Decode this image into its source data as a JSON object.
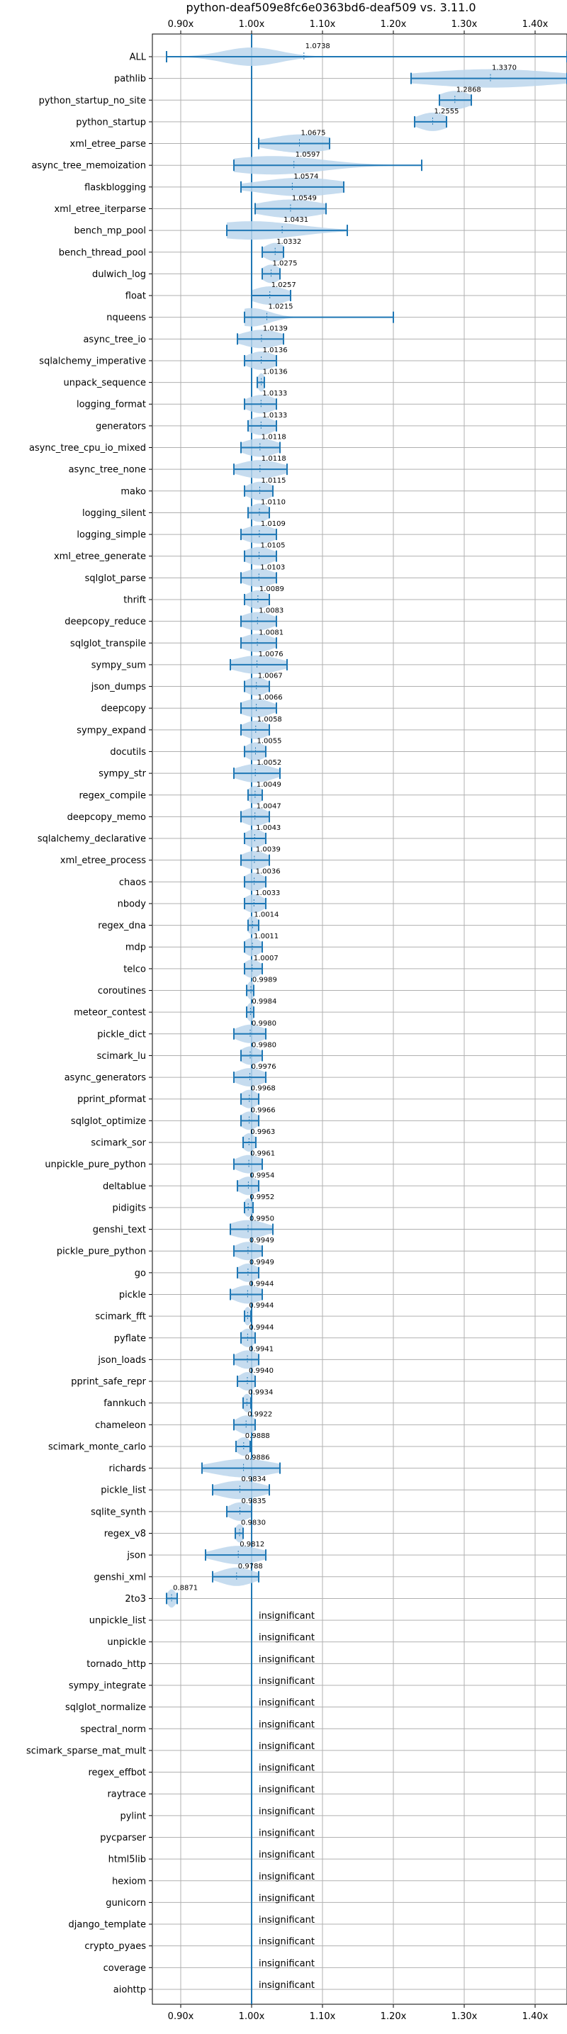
{
  "chart_data": {
    "type": "violin",
    "title": "python-deaf509e8fc6e0363bd6-deaf509 vs. 3.11.0",
    "xlabel": "",
    "ylabel": "",
    "xlim": [
      0.86,
      1.445
    ],
    "xticks": [
      0.9,
      1.0,
      1.1,
      1.2,
      1.3,
      1.4
    ],
    "xtick_labels": [
      "0.90x",
      "1.00x",
      "1.10x",
      "1.20x",
      "1.30x",
      "1.40x"
    ],
    "reference_line": 1.0,
    "grid": true,
    "colors": {
      "violin": "#bcd6ec",
      "whisker": "#1f77b4",
      "grid": "#b0b0b0"
    },
    "insignificant_label": "insignificant",
    "series": [
      {
        "name": "ALL",
        "label": "1.0738",
        "min": 0.88,
        "max": 1.445,
        "mean": 1.0738,
        "mode": 1.0,
        "spread": 0.04
      },
      {
        "name": "pathlib",
        "label": "1.3370",
        "min": 1.225,
        "max": 1.445,
        "mean": 1.337,
        "mode": 1.337,
        "spread": 0.1
      },
      {
        "name": "python_startup_no_site",
        "label": "1.2868",
        "min": 1.265,
        "max": 1.31,
        "mean": 1.2868,
        "mode": 1.2868,
        "spread": 0.022
      },
      {
        "name": "python_startup",
        "label": "1.2555",
        "min": 1.23,
        "max": 1.275,
        "mean": 1.2555,
        "mode": 1.2555,
        "spread": 0.022
      },
      {
        "name": "xml_etree_parse",
        "label": "1.0675",
        "min": 1.01,
        "max": 1.11,
        "mean": 1.0675,
        "mode": 1.07,
        "spread": 0.045
      },
      {
        "name": "async_tree_memoization",
        "label": "1.0597",
        "min": 0.975,
        "max": 1.24,
        "mean": 1.0597,
        "mode": 1.03,
        "spread": 0.07
      },
      {
        "name": "flaskblogging",
        "label": "1.0574",
        "min": 0.985,
        "max": 1.13,
        "mean": 1.0574,
        "mode": 1.07,
        "spread": 0.06
      },
      {
        "name": "xml_etree_iterparse",
        "label": "1.0549",
        "min": 1.005,
        "max": 1.105,
        "mean": 1.0549,
        "mode": 1.055,
        "spread": 0.045
      },
      {
        "name": "bench_mp_pool",
        "label": "1.0431",
        "min": 0.965,
        "max": 1.135,
        "mean": 1.0431,
        "mode": 1.0,
        "spread": 0.065
      },
      {
        "name": "bench_thread_pool",
        "label": "1.0332",
        "min": 1.015,
        "max": 1.045,
        "mean": 1.0332,
        "mode": 1.0332,
        "spread": 0.015
      },
      {
        "name": "dulwich_log",
        "label": "1.0275",
        "min": 1.015,
        "max": 1.04,
        "mean": 1.0275,
        "mode": 1.0275,
        "spread": 0.013
      },
      {
        "name": "float",
        "label": "1.0257",
        "min": 1.0,
        "max": 1.055,
        "mean": 1.0257,
        "mode": 1.0257,
        "spread": 0.025
      },
      {
        "name": "nqueens",
        "label": "1.0215",
        "min": 0.99,
        "max": 1.2,
        "mean": 1.0215,
        "mode": 1.0,
        "spread": 0.025
      },
      {
        "name": "async_tree_io",
        "label": "1.0139",
        "min": 0.98,
        "max": 1.045,
        "mean": 1.0139,
        "mode": 1.0139,
        "spread": 0.028
      },
      {
        "name": "sqlalchemy_imperative",
        "label": "1.0136",
        "min": 0.99,
        "max": 1.035,
        "mean": 1.0136,
        "mode": 1.0136,
        "spread": 0.02
      },
      {
        "name": "unpack_sequence",
        "label": "1.0136",
        "min": 1.008,
        "max": 1.018,
        "mean": 1.0136,
        "mode": 1.0136,
        "spread": 0.005
      },
      {
        "name": "logging_format",
        "label": "1.0133",
        "min": 0.99,
        "max": 1.035,
        "mean": 1.0133,
        "mode": 1.0133,
        "spread": 0.02
      },
      {
        "name": "generators",
        "label": "1.0133",
        "min": 0.995,
        "max": 1.035,
        "mean": 1.0133,
        "mode": 1.0133,
        "spread": 0.018
      },
      {
        "name": "async_tree_cpu_io_mixed",
        "label": "1.0118",
        "min": 0.985,
        "max": 1.04,
        "mean": 1.0118,
        "mode": 1.0118,
        "spread": 0.024
      },
      {
        "name": "async_tree_none",
        "label": "1.0118",
        "min": 0.975,
        "max": 1.05,
        "mean": 1.0118,
        "mode": 1.0118,
        "spread": 0.03
      },
      {
        "name": "mako",
        "label": "1.0115",
        "min": 0.99,
        "max": 1.03,
        "mean": 1.0115,
        "mode": 1.0115,
        "spread": 0.018
      },
      {
        "name": "logging_silent",
        "label": "1.0110",
        "min": 0.995,
        "max": 1.025,
        "mean": 1.011,
        "mode": 1.011,
        "spread": 0.014
      },
      {
        "name": "logging_simple",
        "label": "1.0109",
        "min": 0.985,
        "max": 1.035,
        "mean": 1.0109,
        "mode": 1.0109,
        "spread": 0.022
      },
      {
        "name": "xml_etree_generate",
        "label": "1.0105",
        "min": 0.99,
        "max": 1.035,
        "mean": 1.0105,
        "mode": 1.0105,
        "spread": 0.02
      },
      {
        "name": "sqlglot_parse",
        "label": "1.0103",
        "min": 0.985,
        "max": 1.035,
        "mean": 1.0103,
        "mode": 1.0103,
        "spread": 0.022
      },
      {
        "name": "thrift",
        "label": "1.0089",
        "min": 0.99,
        "max": 1.025,
        "mean": 1.0089,
        "mode": 1.0089,
        "spread": 0.016
      },
      {
        "name": "deepcopy_reduce",
        "label": "1.0083",
        "min": 0.985,
        "max": 1.035,
        "mean": 1.0083,
        "mode": 1.0083,
        "spread": 0.022
      },
      {
        "name": "sqlglot_transpile",
        "label": "1.0081",
        "min": 0.985,
        "max": 1.035,
        "mean": 1.0081,
        "mode": 1.0081,
        "spread": 0.022
      },
      {
        "name": "sympy_sum",
        "label": "1.0076",
        "min": 0.97,
        "max": 1.05,
        "mean": 1.0076,
        "mode": 1.0076,
        "spread": 0.032
      },
      {
        "name": "json_dumps",
        "label": "1.0067",
        "min": 0.99,
        "max": 1.025,
        "mean": 1.0067,
        "mode": 1.0067,
        "spread": 0.016
      },
      {
        "name": "deepcopy",
        "label": "1.0066",
        "min": 0.985,
        "max": 1.035,
        "mean": 1.0066,
        "mode": 1.0066,
        "spread": 0.022
      },
      {
        "name": "sympy_expand",
        "label": "1.0058",
        "min": 0.985,
        "max": 1.025,
        "mean": 1.0058,
        "mode": 1.0058,
        "spread": 0.018
      },
      {
        "name": "docutils",
        "label": "1.0055",
        "min": 0.99,
        "max": 1.02,
        "mean": 1.0055,
        "mode": 1.0055,
        "spread": 0.014
      },
      {
        "name": "sympy_str",
        "label": "1.0052",
        "min": 0.975,
        "max": 1.04,
        "mean": 1.0052,
        "mode": 1.0052,
        "spread": 0.026
      },
      {
        "name": "regex_compile",
        "label": "1.0049",
        "min": 0.995,
        "max": 1.015,
        "mean": 1.0049,
        "mode": 1.0049,
        "spread": 0.01
      },
      {
        "name": "deepcopy_memo",
        "label": "1.0047",
        "min": 0.985,
        "max": 1.025,
        "mean": 1.0047,
        "mode": 1.0047,
        "spread": 0.018
      },
      {
        "name": "sqlalchemy_declarative",
        "label": "1.0043",
        "min": 0.99,
        "max": 1.02,
        "mean": 1.0043,
        "mode": 1.0043,
        "spread": 0.014
      },
      {
        "name": "xml_etree_process",
        "label": "1.0039",
        "min": 0.985,
        "max": 1.025,
        "mean": 1.0039,
        "mode": 1.0039,
        "spread": 0.018
      },
      {
        "name": "chaos",
        "label": "1.0036",
        "min": 0.99,
        "max": 1.02,
        "mean": 1.0036,
        "mode": 1.0036,
        "spread": 0.014
      },
      {
        "name": "nbody",
        "label": "1.0033",
        "min": 0.99,
        "max": 1.02,
        "mean": 1.0033,
        "mode": 1.0033,
        "spread": 0.014
      },
      {
        "name": "regex_dna",
        "label": "1.0014",
        "min": 0.995,
        "max": 1.01,
        "mean": 1.0014,
        "mode": 1.0014,
        "spread": 0.008
      },
      {
        "name": "mdp",
        "label": "1.0011",
        "min": 0.99,
        "max": 1.015,
        "mean": 1.0011,
        "mode": 1.0011,
        "spread": 0.012
      },
      {
        "name": "telco",
        "label": "1.0007",
        "min": 0.99,
        "max": 1.015,
        "mean": 1.0007,
        "mode": 1.0007,
        "spread": 0.012
      },
      {
        "name": "coroutines",
        "label": "0.9989",
        "min": 0.993,
        "max": 1.003,
        "mean": 0.9989,
        "mode": 0.9989,
        "spread": 0.005
      },
      {
        "name": "meteor_contest",
        "label": "0.9984",
        "min": 0.993,
        "max": 1.003,
        "mean": 0.9984,
        "mode": 0.9984,
        "spread": 0.005
      },
      {
        "name": "pickle_dict",
        "label": "0.9980",
        "min": 0.975,
        "max": 1.02,
        "mean": 0.998,
        "mode": 0.998,
        "spread": 0.02
      },
      {
        "name": "scimark_lu",
        "label": "0.9980",
        "min": 0.985,
        "max": 1.015,
        "mean": 0.998,
        "mode": 0.998,
        "spread": 0.014
      },
      {
        "name": "async_generators",
        "label": "0.9976",
        "min": 0.975,
        "max": 1.02,
        "mean": 0.9976,
        "mode": 0.9976,
        "spread": 0.02
      },
      {
        "name": "pprint_pformat",
        "label": "0.9968",
        "min": 0.985,
        "max": 1.01,
        "mean": 0.9968,
        "mode": 0.9968,
        "spread": 0.012
      },
      {
        "name": "sqlglot_optimize",
        "label": "0.9966",
        "min": 0.985,
        "max": 1.01,
        "mean": 0.9966,
        "mode": 0.9966,
        "spread": 0.012
      },
      {
        "name": "scimark_sor",
        "label": "0.9963",
        "min": 0.988,
        "max": 1.006,
        "mean": 0.9963,
        "mode": 0.9963,
        "spread": 0.009
      },
      {
        "name": "unpickle_pure_python",
        "label": "0.9961",
        "min": 0.975,
        "max": 1.015,
        "mean": 0.9961,
        "mode": 0.9961,
        "spread": 0.018
      },
      {
        "name": "deltablue",
        "label": "0.9954",
        "min": 0.98,
        "max": 1.01,
        "mean": 0.9954,
        "mode": 0.9954,
        "spread": 0.014
      },
      {
        "name": "pidigits",
        "label": "0.9952",
        "min": 0.99,
        "max": 1.002,
        "mean": 0.9952,
        "mode": 0.9952,
        "spread": 0.006
      },
      {
        "name": "genshi_text",
        "label": "0.9950",
        "min": 0.97,
        "max": 1.03,
        "mean": 0.995,
        "mode": 0.995,
        "spread": 0.026
      },
      {
        "name": "pickle_pure_python",
        "label": "0.9949",
        "min": 0.975,
        "max": 1.015,
        "mean": 0.9949,
        "mode": 0.9949,
        "spread": 0.018
      },
      {
        "name": "go",
        "label": "0.9949",
        "min": 0.98,
        "max": 1.01,
        "mean": 0.9949,
        "mode": 0.9949,
        "spread": 0.014
      },
      {
        "name": "pickle",
        "label": "0.9944",
        "min": 0.97,
        "max": 1.015,
        "mean": 0.9944,
        "mode": 0.9944,
        "spread": 0.02
      },
      {
        "name": "scimark_fft",
        "label": "0.9944",
        "min": 0.99,
        "max": 0.999,
        "mean": 0.9944,
        "mode": 0.9944,
        "spread": 0.005
      },
      {
        "name": "pyflate",
        "label": "0.9944",
        "min": 0.985,
        "max": 1.005,
        "mean": 0.9944,
        "mode": 0.9944,
        "spread": 0.01
      },
      {
        "name": "json_loads",
        "label": "0.9941",
        "min": 0.975,
        "max": 1.01,
        "mean": 0.9941,
        "mode": 0.9941,
        "spread": 0.016
      },
      {
        "name": "pprint_safe_repr",
        "label": "0.9940",
        "min": 0.98,
        "max": 1.005,
        "mean": 0.994,
        "mode": 0.994,
        "spread": 0.012
      },
      {
        "name": "fannkuch",
        "label": "0.9934",
        "min": 0.988,
        "max": 0.999,
        "mean": 0.9934,
        "mode": 0.9934,
        "spread": 0.006
      },
      {
        "name": "chameleon",
        "label": "0.9922",
        "min": 0.975,
        "max": 1.005,
        "mean": 0.9922,
        "mode": 0.9922,
        "spread": 0.014
      },
      {
        "name": "scimark_monte_carlo",
        "label": "0.9888",
        "min": 0.978,
        "max": 0.998,
        "mean": 0.9888,
        "mode": 0.9888,
        "spread": 0.01
      },
      {
        "name": "richards",
        "label": "0.9886",
        "min": 0.93,
        "max": 1.04,
        "mean": 0.9886,
        "mode": 0.9886,
        "spread": 0.042
      },
      {
        "name": "pickle_list",
        "label": "0.9834",
        "min": 0.945,
        "max": 1.025,
        "mean": 0.9834,
        "mode": 0.9834,
        "spread": 0.032
      },
      {
        "name": "sqlite_synth",
        "label": "0.9835",
        "min": 0.965,
        "max": 1.0,
        "mean": 0.9835,
        "mode": 0.9835,
        "spread": 0.016
      },
      {
        "name": "regex_v8",
        "label": "0.9830",
        "min": 0.977,
        "max": 0.988,
        "mean": 0.983,
        "mode": 0.983,
        "spread": 0.006
      },
      {
        "name": "json",
        "label": "0.9812",
        "min": 0.935,
        "max": 1.02,
        "mean": 0.9812,
        "mode": 0.9812,
        "spread": 0.032
      },
      {
        "name": "genshi_xml",
        "label": "0.9788",
        "min": 0.945,
        "max": 1.01,
        "mean": 0.9788,
        "mode": 0.9788,
        "spread": 0.024
      },
      {
        "name": "2to3",
        "label": "0.8871",
        "min": 0.88,
        "max": 0.895,
        "mean": 0.8871,
        "mode": 0.8871,
        "spread": 0.006
      },
      {
        "name": "unpickle_list",
        "insignificant": true
      },
      {
        "name": "unpickle",
        "insignificant": true
      },
      {
        "name": "tornado_http",
        "insignificant": true
      },
      {
        "name": "sympy_integrate",
        "insignificant": true
      },
      {
        "name": "sqlglot_normalize",
        "insignificant": true
      },
      {
        "name": "spectral_norm",
        "insignificant": true
      },
      {
        "name": "scimark_sparse_mat_mult",
        "insignificant": true
      },
      {
        "name": "regex_effbot",
        "insignificant": true
      },
      {
        "name": "raytrace",
        "insignificant": true
      },
      {
        "name": "pylint",
        "insignificant": true
      },
      {
        "name": "pycparser",
        "insignificant": true
      },
      {
        "name": "html5lib",
        "insignificant": true
      },
      {
        "name": "hexiom",
        "insignificant": true
      },
      {
        "name": "gunicorn",
        "insignificant": true
      },
      {
        "name": "django_template",
        "insignificant": true
      },
      {
        "name": "crypto_pyaes",
        "insignificant": true
      },
      {
        "name": "coverage",
        "insignificant": true
      },
      {
        "name": "aiohttp",
        "insignificant": true
      }
    ]
  }
}
